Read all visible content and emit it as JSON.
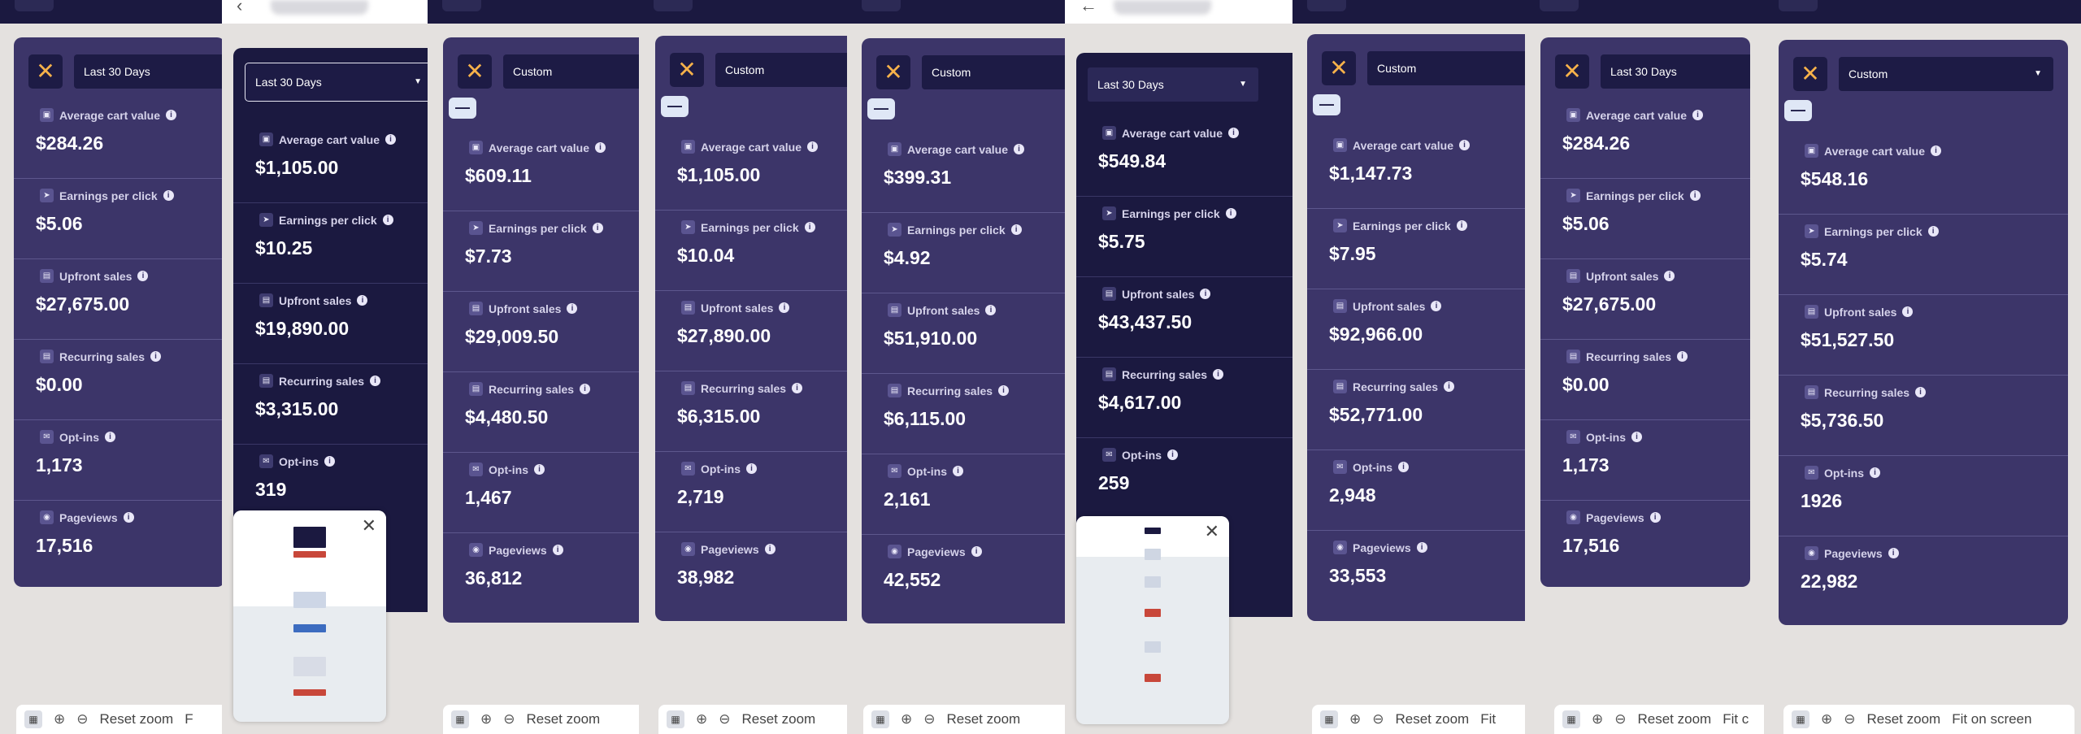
{
  "x_icon": "close-x-icon",
  "caret_icon": "caret-down-icon",
  "info_icon": "info-icon",
  "labels": {
    "avg": "Average cart value",
    "epc": "Earnings per click",
    "upfront": "Upfront sales",
    "recurring": "Recurring sales",
    "optins": "Opt-ins",
    "pageviews": "Pageviews"
  },
  "zoom": {
    "reset": "Reset zoom",
    "fit_full": "Fit on screen",
    "fit_f": "F",
    "fit_fit": "Fit",
    "fit_fitc": "Fit c"
  },
  "panels": [
    {
      "range": "Last 30 Days",
      "avg": "$284.26",
      "epc": "$5.06",
      "upfront": "$27,675.00",
      "recurring": "$0.00",
      "optins": "1,173",
      "pageviews": "17,516"
    },
    {
      "range": "Last 30 Days",
      "avg": "$1,105.00",
      "epc": "$10.25",
      "upfront": "$19,890.00",
      "recurring": "$3,315.00",
      "optins": "319"
    },
    {
      "range": "Custom",
      "avg": "$609.11",
      "epc": "$7.73",
      "upfront": "$29,009.50",
      "recurring": "$4,480.50",
      "optins": "1,467",
      "pageviews": "36,812"
    },
    {
      "range": "Custom",
      "avg": "$1,105.00",
      "epc": "$10.04",
      "upfront": "$27,890.00",
      "recurring": "$6,315.00",
      "optins": "2,719",
      "pageviews": "38,982"
    },
    {
      "range": "Custom",
      "avg": "$399.31",
      "epc": "$4.92",
      "upfront": "$51,910.00",
      "recurring": "$6,115.00",
      "optins": "2,161",
      "pageviews": "42,552"
    },
    {
      "range": "Last 30 Days",
      "avg": "$549.84",
      "epc": "$5.75",
      "upfront": "$43,437.50",
      "recurring": "$4,617.00",
      "optins": "259"
    },
    {
      "range": "Custom",
      "avg": "$1,147.73",
      "epc": "$7.95",
      "upfront": "$92,966.00",
      "recurring": "$52,771.00",
      "optins": "2,948",
      "pageviews": "33,553"
    },
    {
      "range": "Last 30 Days",
      "avg": "$284.26",
      "epc": "$5.06",
      "upfront": "$27,675.00",
      "recurring": "$0.00",
      "optins": "1,173",
      "pageviews": "17,516"
    },
    {
      "range": "Custom",
      "avg": "$548.16",
      "epc": "$5.74",
      "upfront": "$51,527.50",
      "recurring": "$5,736.50",
      "optins": "1926",
      "pageviews": "22,982"
    }
  ]
}
